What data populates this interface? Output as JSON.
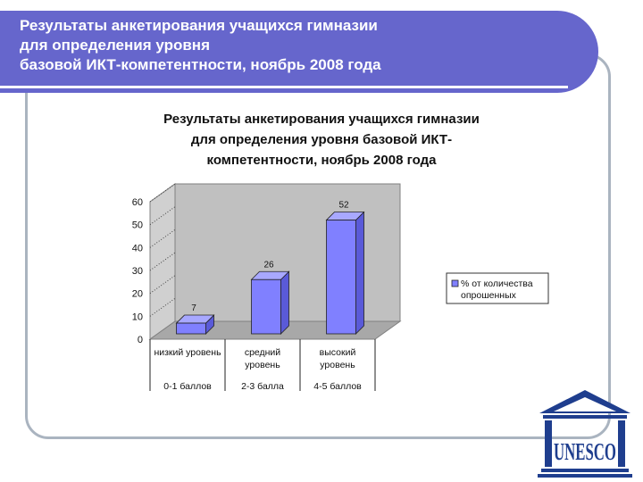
{
  "slide": {
    "title_lines": [
      "Результаты анкетирования учащихся  гимназии",
      "для определения уровня",
      "базовой ИКТ-компетентности, ноябрь 2008 года"
    ]
  },
  "logo": {
    "text": "UNESCO",
    "icon": "unesco-temple-logo"
  },
  "colors": {
    "band": "#6666cc",
    "bar": "#8080ff",
    "wall": "#c0c0c0",
    "frame": "#aab4c0"
  },
  "chart_data": {
    "type": "bar",
    "title_lines": [
      "Результаты анкетирования учащихся  гимназии",
      "для определения уровня базовой ИКТ-",
      "компетентности, ноябрь 2008 года"
    ],
    "categories": [
      [
        "низкий уровень"
      ],
      [
        "средний",
        "уровень"
      ],
      [
        "высокий",
        "уровень"
      ]
    ],
    "subcategories": [
      "0-1 баллов",
      "2-3 балла",
      "4-5 баллов"
    ],
    "series": [
      {
        "name": "% от количества опрошенных",
        "values": [
          7,
          26,
          52
        ]
      }
    ],
    "data_labels": [
      "7",
      "26",
      "52"
    ],
    "ylim": [
      0,
      60
    ],
    "yticks": [
      "0",
      "10",
      "20",
      "30",
      "40",
      "50",
      "60"
    ],
    "legend": {
      "position": "right",
      "lines": [
        "% от количества",
        "опрошенных"
      ]
    },
    "grid": true
  }
}
